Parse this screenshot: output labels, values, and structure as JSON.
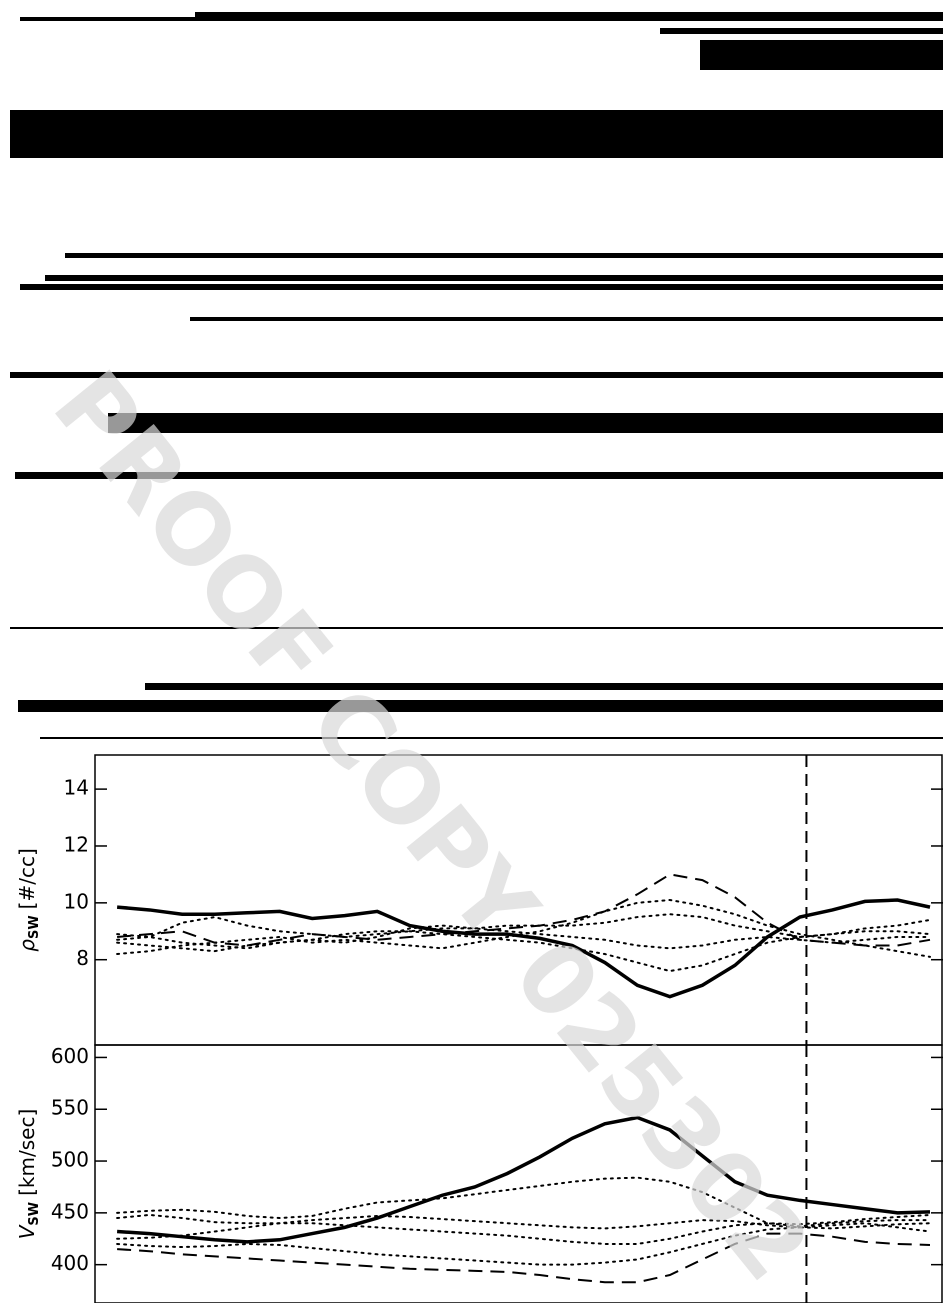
{
  "watermark": "PROOF COPY 025302",
  "chart_data": [
    {
      "type": "line",
      "y_label": {
        "symbol": "ρ",
        "subscript": "SW",
        "unit": "[#/cc]"
      },
      "x": [
        0,
        1,
        2,
        3,
        4,
        5,
        6,
        7,
        8,
        9,
        10,
        11,
        12,
        13,
        14,
        15,
        16,
        17,
        18,
        19,
        20,
        21,
        22,
        23,
        24,
        25
      ],
      "xlim": [
        -0.68,
        25.4
      ],
      "ylim": [
        5.0,
        15.2
      ],
      "yticks": [
        8,
        10,
        12,
        14
      ],
      "vline_x": 21.2,
      "series": [
        {
          "style": "solid",
          "color": "#000000",
          "values": [
            9.85,
            9.75,
            9.6,
            9.6,
            9.65,
            9.7,
            9.45,
            9.55,
            9.7,
            9.2,
            9.0,
            8.9,
            8.9,
            8.75,
            8.5,
            7.9,
            7.1,
            6.7,
            7.1,
            7.8,
            8.8,
            9.5,
            9.75,
            10.05,
            10.1,
            9.85
          ]
        },
        {
          "style": "dashed",
          "color": "#000000",
          "values": [
            8.8,
            8.9,
            9.0,
            8.6,
            8.5,
            8.7,
            8.9,
            8.8,
            8.7,
            8.8,
            8.9,
            9.0,
            9.1,
            9.2,
            9.4,
            9.7,
            10.3,
            11.0,
            10.8,
            10.2,
            9.3,
            8.7,
            8.6,
            8.5,
            8.5,
            8.7
          ]
        },
        {
          "style": "dotted",
          "color": "#000000",
          "values": [
            8.2,
            8.3,
            8.5,
            8.6,
            8.7,
            8.8,
            8.6,
            8.7,
            8.6,
            8.5,
            8.4,
            8.6,
            8.8,
            9.0,
            9.3,
            9.7,
            10.0,
            10.1,
            9.9,
            9.6,
            9.2,
            8.9,
            8.7,
            8.5,
            8.3,
            8.1
          ]
        },
        {
          "style": "dotted",
          "color": "#000000",
          "values": [
            8.9,
            8.8,
            9.3,
            9.5,
            9.2,
            9.0,
            8.9,
            8.8,
            8.9,
            9.0,
            9.1,
            9.1,
            9.2,
            9.2,
            9.2,
            9.3,
            9.5,
            9.6,
            9.5,
            9.2,
            9.0,
            8.8,
            8.9,
            9.1,
            9.2,
            9.4
          ]
        },
        {
          "style": "dotted",
          "color": "#000000",
          "values": [
            8.6,
            8.5,
            8.4,
            8.3,
            8.5,
            8.6,
            8.7,
            8.9,
            9.0,
            9.0,
            8.9,
            8.8,
            8.7,
            8.6,
            8.4,
            8.2,
            7.9,
            7.6,
            7.8,
            8.2,
            8.6,
            8.8,
            8.9,
            9.0,
            9.0,
            8.9
          ]
        },
        {
          "style": "dotted",
          "color": "#000000",
          "values": [
            8.7,
            8.8,
            8.6,
            8.5,
            8.4,
            8.6,
            8.7,
            8.6,
            8.8,
            9.1,
            9.2,
            9.1,
            9.0,
            8.9,
            8.8,
            8.7,
            8.5,
            8.4,
            8.5,
            8.7,
            8.8,
            8.7,
            8.6,
            8.7,
            8.8,
            8.8
          ]
        }
      ]
    },
    {
      "type": "line",
      "y_label": {
        "symbol": "V",
        "subscript": "SW",
        "unit": "[km/sec]"
      },
      "x": [
        0,
        1,
        2,
        3,
        4,
        5,
        6,
        7,
        8,
        9,
        10,
        11,
        12,
        13,
        14,
        15,
        16,
        17,
        18,
        19,
        20,
        21,
        22,
        23,
        24,
        25
      ],
      "xlim": [
        -0.68,
        25.4
      ],
      "ylim": [
        363,
        612
      ],
      "yticks": [
        400,
        450,
        500,
        550,
        600
      ],
      "vline_x": 21.2,
      "series": [
        {
          "style": "solid",
          "color": "#000000",
          "values": [
            432,
            430,
            427,
            424,
            422,
            424,
            430,
            436,
            445,
            456,
            467,
            475,
            488,
            504,
            522,
            536,
            542,
            530,
            505,
            480,
            467,
            462,
            458,
            454,
            450,
            451
          ]
        },
        {
          "style": "dashed",
          "color": "#000000",
          "values": [
            415,
            413,
            410,
            408,
            406,
            404,
            402,
            400,
            398,
            396,
            395,
            394,
            393,
            390,
            386,
            383,
            383,
            390,
            405,
            420,
            430,
            430,
            427,
            422,
            420,
            419
          ]
        },
        {
          "style": "dotted",
          "color": "#000000",
          "values": [
            450,
            452,
            453,
            451,
            447,
            445,
            447,
            454,
            460,
            462,
            464,
            468,
            472,
            476,
            480,
            483,
            484,
            480,
            470,
            455,
            440,
            437,
            440,
            442,
            443,
            443
          ]
        },
        {
          "style": "dotted",
          "color": "#000000",
          "values": [
            445,
            448,
            445,
            441,
            440,
            440,
            440,
            438,
            436,
            434,
            432,
            430,
            428,
            425,
            422,
            420,
            420,
            425,
            432,
            438,
            440,
            439,
            441,
            444,
            446,
            448
          ]
        },
        {
          "style": "dotted",
          "color": "#000000",
          "values": [
            425,
            426,
            428,
            432,
            436,
            440,
            443,
            445,
            447,
            446,
            444,
            442,
            440,
            438,
            436,
            435,
            437,
            440,
            443,
            442,
            438,
            436,
            435,
            437,
            439,
            440
          ]
        },
        {
          "style": "dotted",
          "color": "#000000",
          "values": [
            420,
            418,
            417,
            418,
            420,
            419,
            416,
            413,
            410,
            408,
            406,
            404,
            402,
            400,
            400,
            402,
            405,
            412,
            420,
            428,
            434,
            436,
            438,
            440,
            436,
            432
          ]
        }
      ]
    }
  ]
}
